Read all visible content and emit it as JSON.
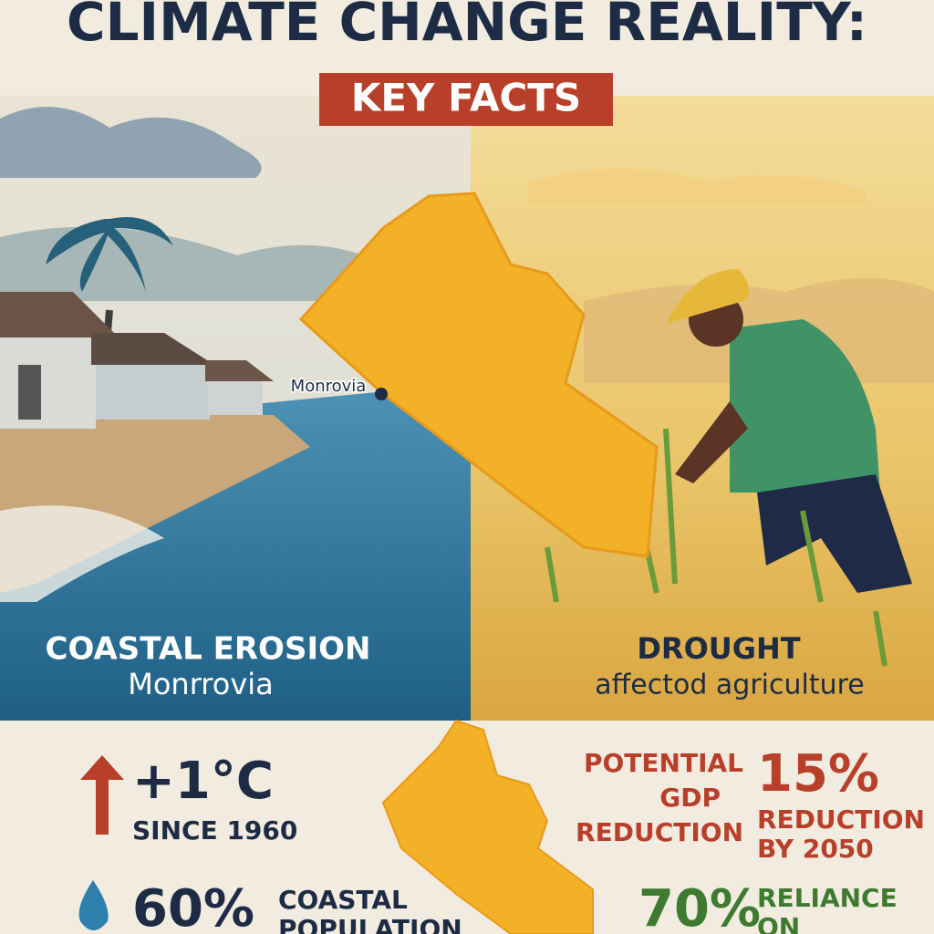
{
  "header": {
    "title": "CLIMATE CHANGE REALITY:",
    "subtitle": "KEY FACTS"
  },
  "map": {
    "city_label": "Monrovia"
  },
  "panels": [
    {
      "heading": "COASTAL EROSION",
      "caption": "Monrrovia"
    },
    {
      "heading": "DROUGHT",
      "caption": "affectod agriculture"
    }
  ],
  "stats": {
    "temperature": {
      "value": "+1°C",
      "label": "SINCE 1960"
    },
    "coastal": {
      "value": "60%",
      "label_lines": [
        "COASTAL",
        "POPULATION"
      ]
    },
    "gdp": {
      "label_lines": [
        "POTENTIAL",
        "GDP",
        "REDUCTION"
      ],
      "value": "15%",
      "note_lines": [
        "REDUCTION",
        "BY 2050"
      ]
    },
    "agriculture": {
      "value": "70%",
      "label_lines": [
        "RELIANCE",
        "ON"
      ]
    }
  }
}
